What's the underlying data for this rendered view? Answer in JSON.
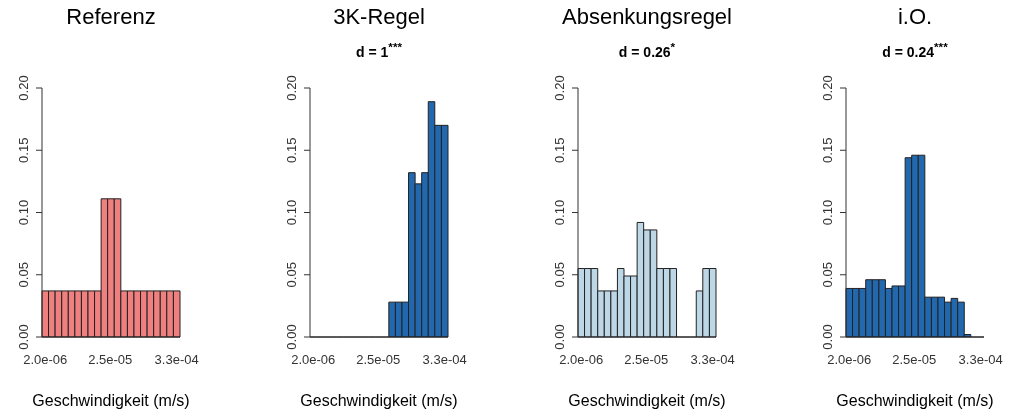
{
  "chart_data": [
    {
      "type": "histogram",
      "title": "Referenz",
      "xlabel": "Geschwindigkeit (m/s)",
      "color": "#f08080",
      "log": "x",
      "xlim": [
        1.76e-06,
        0.000376
      ],
      "xticks": [
        {
          "value": 2e-06,
          "label": "2.0e-06"
        },
        {
          "value": 2.5e-05,
          "label": "2.5e-05"
        },
        {
          "value": 0.00033,
          "label": "3.3e-04"
        }
      ],
      "ylim": [
        0,
        0.2
      ],
      "yticks": [
        {
          "value": 0,
          "label": "0.00"
        },
        {
          "value": 0.05,
          "label": "0.05"
        },
        {
          "value": 0.1,
          "label": "0.10"
        },
        {
          "value": 0.15,
          "label": "0.15"
        },
        {
          "value": 0.2,
          "label": "0.20"
        }
      ],
      "bins": [
        1.76e-06,
        2.27e-06,
        2.93e-06,
        3.79e-06,
        4.89e-06,
        6.31e-06,
        8.15e-06,
        1.052e-05,
        1.358e-05,
        1.753e-05,
        2.26e-05,
        2.92e-05,
        3.77e-05,
        4.87e-05,
        6.28e-05,
        8.11e-05,
        0.0001047,
        0.0001352,
        0.0001745,
        0.000225,
        0.000291,
        0.000376
      ],
      "values": [
        0.037,
        0.037,
        0.037,
        0.037,
        0.037,
        0.037,
        0.037,
        0.037,
        0.037,
        0.111,
        0.111,
        0.111,
        0.037,
        0.037,
        0.037,
        0.037,
        0.037,
        0.037,
        0.037,
        0.037,
        0.037
      ]
    },
    {
      "type": "histogram",
      "title": "3K-Regel",
      "subtitle": "d = 1$^{***}$",
      "xlabel": "Geschwindigkeit (m/s)",
      "color": "#2268ae",
      "log": "x",
      "xlim": [
        1.76e-06,
        0.000376
      ],
      "xticks": [
        {
          "value": 2e-06,
          "label": "2.0e-06"
        },
        {
          "value": 2.5e-05,
          "label": "2.5e-05"
        },
        {
          "value": 0.00033,
          "label": "3.3e-04"
        }
      ],
      "ylim": [
        0,
        0.2
      ],
      "yticks": [
        {
          "value": 0,
          "label": "0.00"
        },
        {
          "value": 0.05,
          "label": "0.05"
        },
        {
          "value": 0.1,
          "label": "0.10"
        },
        {
          "value": 0.15,
          "label": "0.15"
        },
        {
          "value": 0.2,
          "label": "0.20"
        }
      ],
      "bins": [
        1.76e-06,
        2.27e-06,
        2.93e-06,
        3.79e-06,
        4.89e-06,
        6.31e-06,
        8.15e-06,
        1.052e-05,
        1.358e-05,
        1.753e-05,
        2.26e-05,
        2.92e-05,
        3.77e-05,
        4.87e-05,
        6.28e-05,
        8.11e-05,
        0.0001047,
        0.0001352,
        0.0001745,
        0.000225,
        0.000291,
        0.000376
      ],
      "values": [
        0,
        0,
        0,
        0,
        0,
        0,
        0,
        0,
        0,
        0,
        0,
        0,
        0.028,
        0.028,
        0.028,
        0.132,
        0.123,
        0.132,
        0.189,
        0.17,
        0.17
      ]
    },
    {
      "type": "histogram",
      "title": "Absenkungsregel",
      "subtitle": "d = 0.26$^{*}$",
      "xlabel": "Geschwindigkeit (m/s)",
      "color": "#bdd7e7",
      "log": "x",
      "xlim": [
        1.76e-06,
        0.000376
      ],
      "xticks": [
        {
          "value": 2e-06,
          "label": "2.0e-06"
        },
        {
          "value": 2.5e-05,
          "label": "2.5e-05"
        },
        {
          "value": 0.00033,
          "label": "3.3e-04"
        }
      ],
      "ylim": [
        0,
        0.2
      ],
      "yticks": [
        {
          "value": 0,
          "label": "0.00"
        },
        {
          "value": 0.05,
          "label": "0.05"
        },
        {
          "value": 0.1,
          "label": "0.10"
        },
        {
          "value": 0.15,
          "label": "0.15"
        },
        {
          "value": 0.2,
          "label": "0.20"
        }
      ],
      "bins": [
        1.76e-06,
        2.27e-06,
        2.93e-06,
        3.79e-06,
        4.89e-06,
        6.31e-06,
        8.15e-06,
        1.052e-05,
        1.358e-05,
        1.753e-05,
        2.26e-05,
        2.92e-05,
        3.77e-05,
        4.87e-05,
        6.28e-05,
        8.11e-05,
        0.0001047,
        0.0001352,
        0.0001745,
        0.000225,
        0.000291,
        0.000376
      ],
      "values": [
        0.055,
        0.055,
        0.055,
        0.037,
        0.037,
        0.037,
        0.055,
        0.049,
        0.049,
        0.092,
        0.086,
        0.086,
        0.055,
        0.055,
        0.055,
        0,
        0,
        0,
        0.037,
        0.055,
        0.055
      ]
    },
    {
      "type": "histogram",
      "title": "i.O.",
      "subtitle": "d = 0.24$^{***}$",
      "xlabel": "Geschwindigkeit (m/s)",
      "color": "#2268ae",
      "log": "x",
      "xlim": [
        1.76e-06,
        0.000376
      ],
      "xticks": [
        {
          "value": 2e-06,
          "label": "2.0e-06"
        },
        {
          "value": 2.5e-05,
          "label": "2.5e-05"
        },
        {
          "value": 0.00033,
          "label": "3.3e-04"
        }
      ],
      "ylim": [
        0,
        0.2
      ],
      "yticks": [
        {
          "value": 0,
          "label": "0.00"
        },
        {
          "value": 0.05,
          "label": "0.05"
        },
        {
          "value": 0.1,
          "label": "0.10"
        },
        {
          "value": 0.15,
          "label": "0.15"
        },
        {
          "value": 0.2,
          "label": "0.20"
        }
      ],
      "bins": [
        1.76e-06,
        2.27e-06,
        2.93e-06,
        3.79e-06,
        4.89e-06,
        6.31e-06,
        8.15e-06,
        1.052e-05,
        1.358e-05,
        1.753e-05,
        2.26e-05,
        2.92e-05,
        3.77e-05,
        4.87e-05,
        6.28e-05,
        8.11e-05,
        0.0001047,
        0.0001352,
        0.0001745,
        0.000225,
        0.000291,
        0.000376
      ],
      "values": [
        0.039,
        0.039,
        0.039,
        0.046,
        0.046,
        0.046,
        0.039,
        0.041,
        0.041,
        0.144,
        0.146,
        0.146,
        0.032,
        0.032,
        0.032,
        0.028,
        0.031,
        0.028,
        0.002,
        0,
        0
      ]
    }
  ]
}
